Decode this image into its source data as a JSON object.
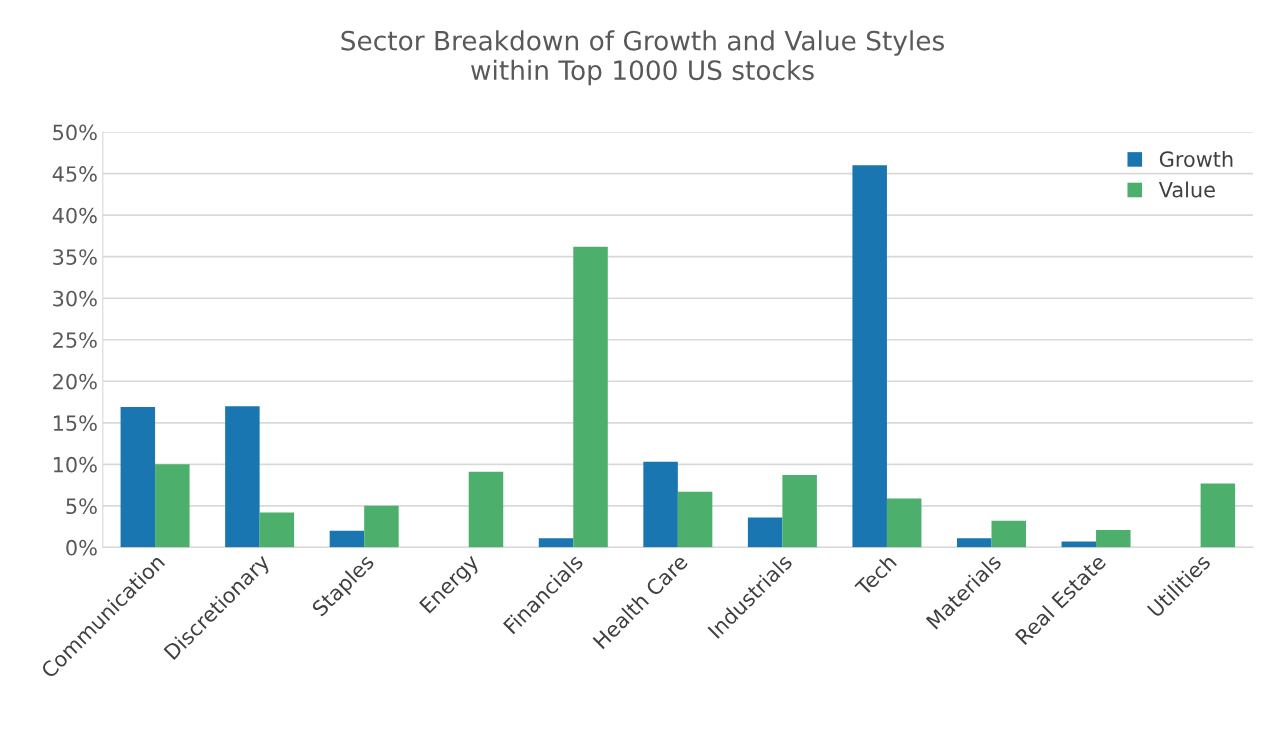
{
  "chart_data": {
    "type": "bar",
    "title": "Sector Breakdown of Growth and Value Styles\nwithin Top 1000 US stocks",
    "categories": [
      "Communication",
      "Discretionary",
      "Staples",
      "Energy",
      "Financials",
      "Health Care",
      "Industrials",
      "Tech",
      "Materials",
      "Real Estate",
      "Utilities"
    ],
    "series": [
      {
        "name": "Growth",
        "color": "#1a76b0",
        "values": [
          16.9,
          17.0,
          2.0,
          0,
          1.1,
          10.3,
          3.6,
          46.0,
          1.1,
          0.7,
          0
        ]
      },
      {
        "name": "Value",
        "color": "#4caf6c",
        "values": [
          10.0,
          4.2,
          5.0,
          9.1,
          36.2,
          6.7,
          8.7,
          5.9,
          3.2,
          2.1,
          7.7
        ]
      }
    ],
    "ylim": [
      0,
      50
    ],
    "yticks": [
      {
        "value": 0,
        "label": "0%"
      },
      {
        "value": 5,
        "label": "5%"
      },
      {
        "value": 10,
        "label": "10%"
      },
      {
        "value": 15,
        "label": "15%"
      },
      {
        "value": 20,
        "label": "20%"
      },
      {
        "value": 25,
        "label": "25%"
      },
      {
        "value": 30,
        "label": "30%"
      },
      {
        "value": 35,
        "label": "35%"
      },
      {
        "value": 40,
        "label": "40%"
      },
      {
        "value": 45,
        "label": "45%"
      },
      {
        "value": 50,
        "label": "50%"
      }
    ],
    "grid": "y",
    "legend": "top right"
  }
}
